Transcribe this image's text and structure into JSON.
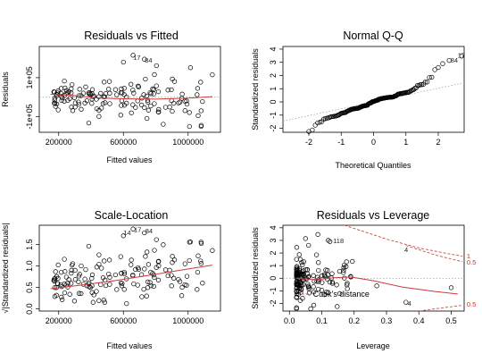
{
  "chart_data": [
    {
      "id": "rvf",
      "type": "scatter",
      "title": "Residuals vs Fitted",
      "xlabel": "Fitted values",
      "ylabel": "Residuals",
      "xlim": [
        80000,
        1200000
      ],
      "ylim": [
        -180000,
        260000
      ],
      "x_ticks": [
        200000,
        600000,
        1000000
      ],
      "x_tick_labels": [
        "200000",
        "600000",
        "1000000"
      ],
      "y_ticks": [
        -100000,
        100000
      ],
      "y_tick_labels": [
        "-1e+05",
        "1e+05"
      ],
      "hline": 0,
      "smooth": [
        [
          150000,
          15000
        ],
        [
          300000,
          8000
        ],
        [
          450000,
          -5000
        ],
        [
          600000,
          -8000
        ],
        [
          800000,
          -10000
        ],
        [
          1000000,
          -5000
        ],
        [
          1150000,
          3000
        ]
      ],
      "labels": [
        {
          "text": "17",
          "x": 660000,
          "y": 205000
        },
        {
          "text": "84",
          "x": 732000,
          "y": 192000
        }
      ]
    },
    {
      "id": "qq",
      "type": "scatter",
      "title": "Normal Q-Q",
      "xlabel": "Theoretical Quantiles",
      "ylabel": "Standardized residuals",
      "xlim": [
        -2.8,
        2.8
      ],
      "ylim": [
        -2.3,
        4.2
      ],
      "x_ticks": [
        -2,
        -1,
        0,
        1,
        2
      ],
      "x_tick_labels": [
        "-2",
        "-1",
        "0",
        "1",
        "2"
      ],
      "y_ticks": [
        -2,
        -1,
        0,
        1,
        2,
        3,
        4
      ],
      "y_tick_labels": [
        "-2",
        "-1",
        "0",
        "1",
        "2",
        "3",
        "4"
      ],
      "refline": [
        [
          -2.8,
          -1.45
        ],
        [
          2.8,
          1.45
        ]
      ],
      "labels": [
        {
          "text": "17",
          "x": 2.6,
          "y": 3.55
        },
        {
          "text": "84",
          "x": 2.38,
          "y": 3.2
        }
      ]
    },
    {
      "id": "sl",
      "type": "scatter",
      "title": "Scale-Location",
      "xlabel": "Fitted values",
      "ylabel": "√|Standardized residuals|",
      "xlim": [
        80000,
        1200000
      ],
      "ylim": [
        -0.05,
        1.95
      ],
      "x_ticks": [
        200000,
        600000,
        1000000
      ],
      "x_tick_labels": [
        "200000",
        "600000",
        "1000000"
      ],
      "y_ticks": [
        0.0,
        0.5,
        1.0,
        1.5
      ],
      "y_tick_labels": [
        "0.0",
        "0.5",
        "1.0",
        "1.5"
      ],
      "smooth": [
        [
          150000,
          0.47
        ],
        [
          350000,
          0.56
        ],
        [
          550000,
          0.66
        ],
        [
          750000,
          0.78
        ],
        [
          950000,
          0.9
        ],
        [
          1150000,
          1.02
        ]
      ],
      "labels": [
        {
          "text": "14",
          "x": 600000,
          "y": 1.78
        },
        {
          "text": "17",
          "x": 665000,
          "y": 1.86
        },
        {
          "text": "84",
          "x": 735000,
          "y": 1.82
        }
      ]
    },
    {
      "id": "rvl",
      "type": "scatter",
      "title": "Residuals vs Leverage",
      "xlabel": "Leverage",
      "ylabel": "Standardized residuals",
      "xlim": [
        -0.02,
        0.54
      ],
      "ylim": [
        -2.6,
        4.2
      ],
      "x_ticks": [
        0.0,
        0.1,
        0.2,
        0.3,
        0.4,
        0.5
      ],
      "x_tick_labels": [
        "0.0",
        "0.1",
        "0.2",
        "0.3",
        "0.4",
        "0.5"
      ],
      "y_ticks": [
        -2,
        -1,
        0,
        1,
        2,
        3,
        4
      ],
      "y_tick_labels": [
        "-2",
        "-1",
        "0",
        "1",
        "2",
        "3",
        "4"
      ],
      "hline": 0,
      "smooth": [
        [
          0.02,
          0.0
        ],
        [
          0.08,
          -0.12
        ],
        [
          0.14,
          0.05
        ],
        [
          0.19,
          0.1
        ],
        [
          0.26,
          -0.2
        ],
        [
          0.35,
          -0.7
        ],
        [
          0.45,
          -1.05
        ],
        [
          0.52,
          -1.25
        ]
      ],
      "cook_upper_outer": [
        [
          0.17,
          4.2
        ],
        [
          0.3,
          3.1
        ],
        [
          0.4,
          2.4
        ],
        [
          0.5,
          1.9
        ],
        [
          0.535,
          1.75
        ]
      ],
      "cook_upper_inner": [
        [
          0.36,
          2.6
        ],
        [
          0.45,
          1.85
        ],
        [
          0.535,
          1.3
        ]
      ],
      "cook_lower": [
        [
          0.4,
          -2.6
        ],
        [
          0.47,
          -2.35
        ],
        [
          0.535,
          -2.15
        ]
      ],
      "legend_text": "Cook's distance",
      "legend_at": [
        0.07,
        -1.25
      ],
      "cook_labels": [
        {
          "text": "1",
          "x": 0.548,
          "y": 1.78
        },
        {
          "text": "0.5",
          "x": 0.548,
          "y": 1.28
        },
        {
          "text": "0.5",
          "x": 0.548,
          "y": -2.05
        }
      ],
      "labels": [
        {
          "text": "118",
          "x": 0.135,
          "y": 3.0
        },
        {
          "text": "4",
          "x": 0.355,
          "y": 2.3
        },
        {
          "text": "4",
          "x": 0.365,
          "y": -1.95
        }
      ]
    }
  ]
}
